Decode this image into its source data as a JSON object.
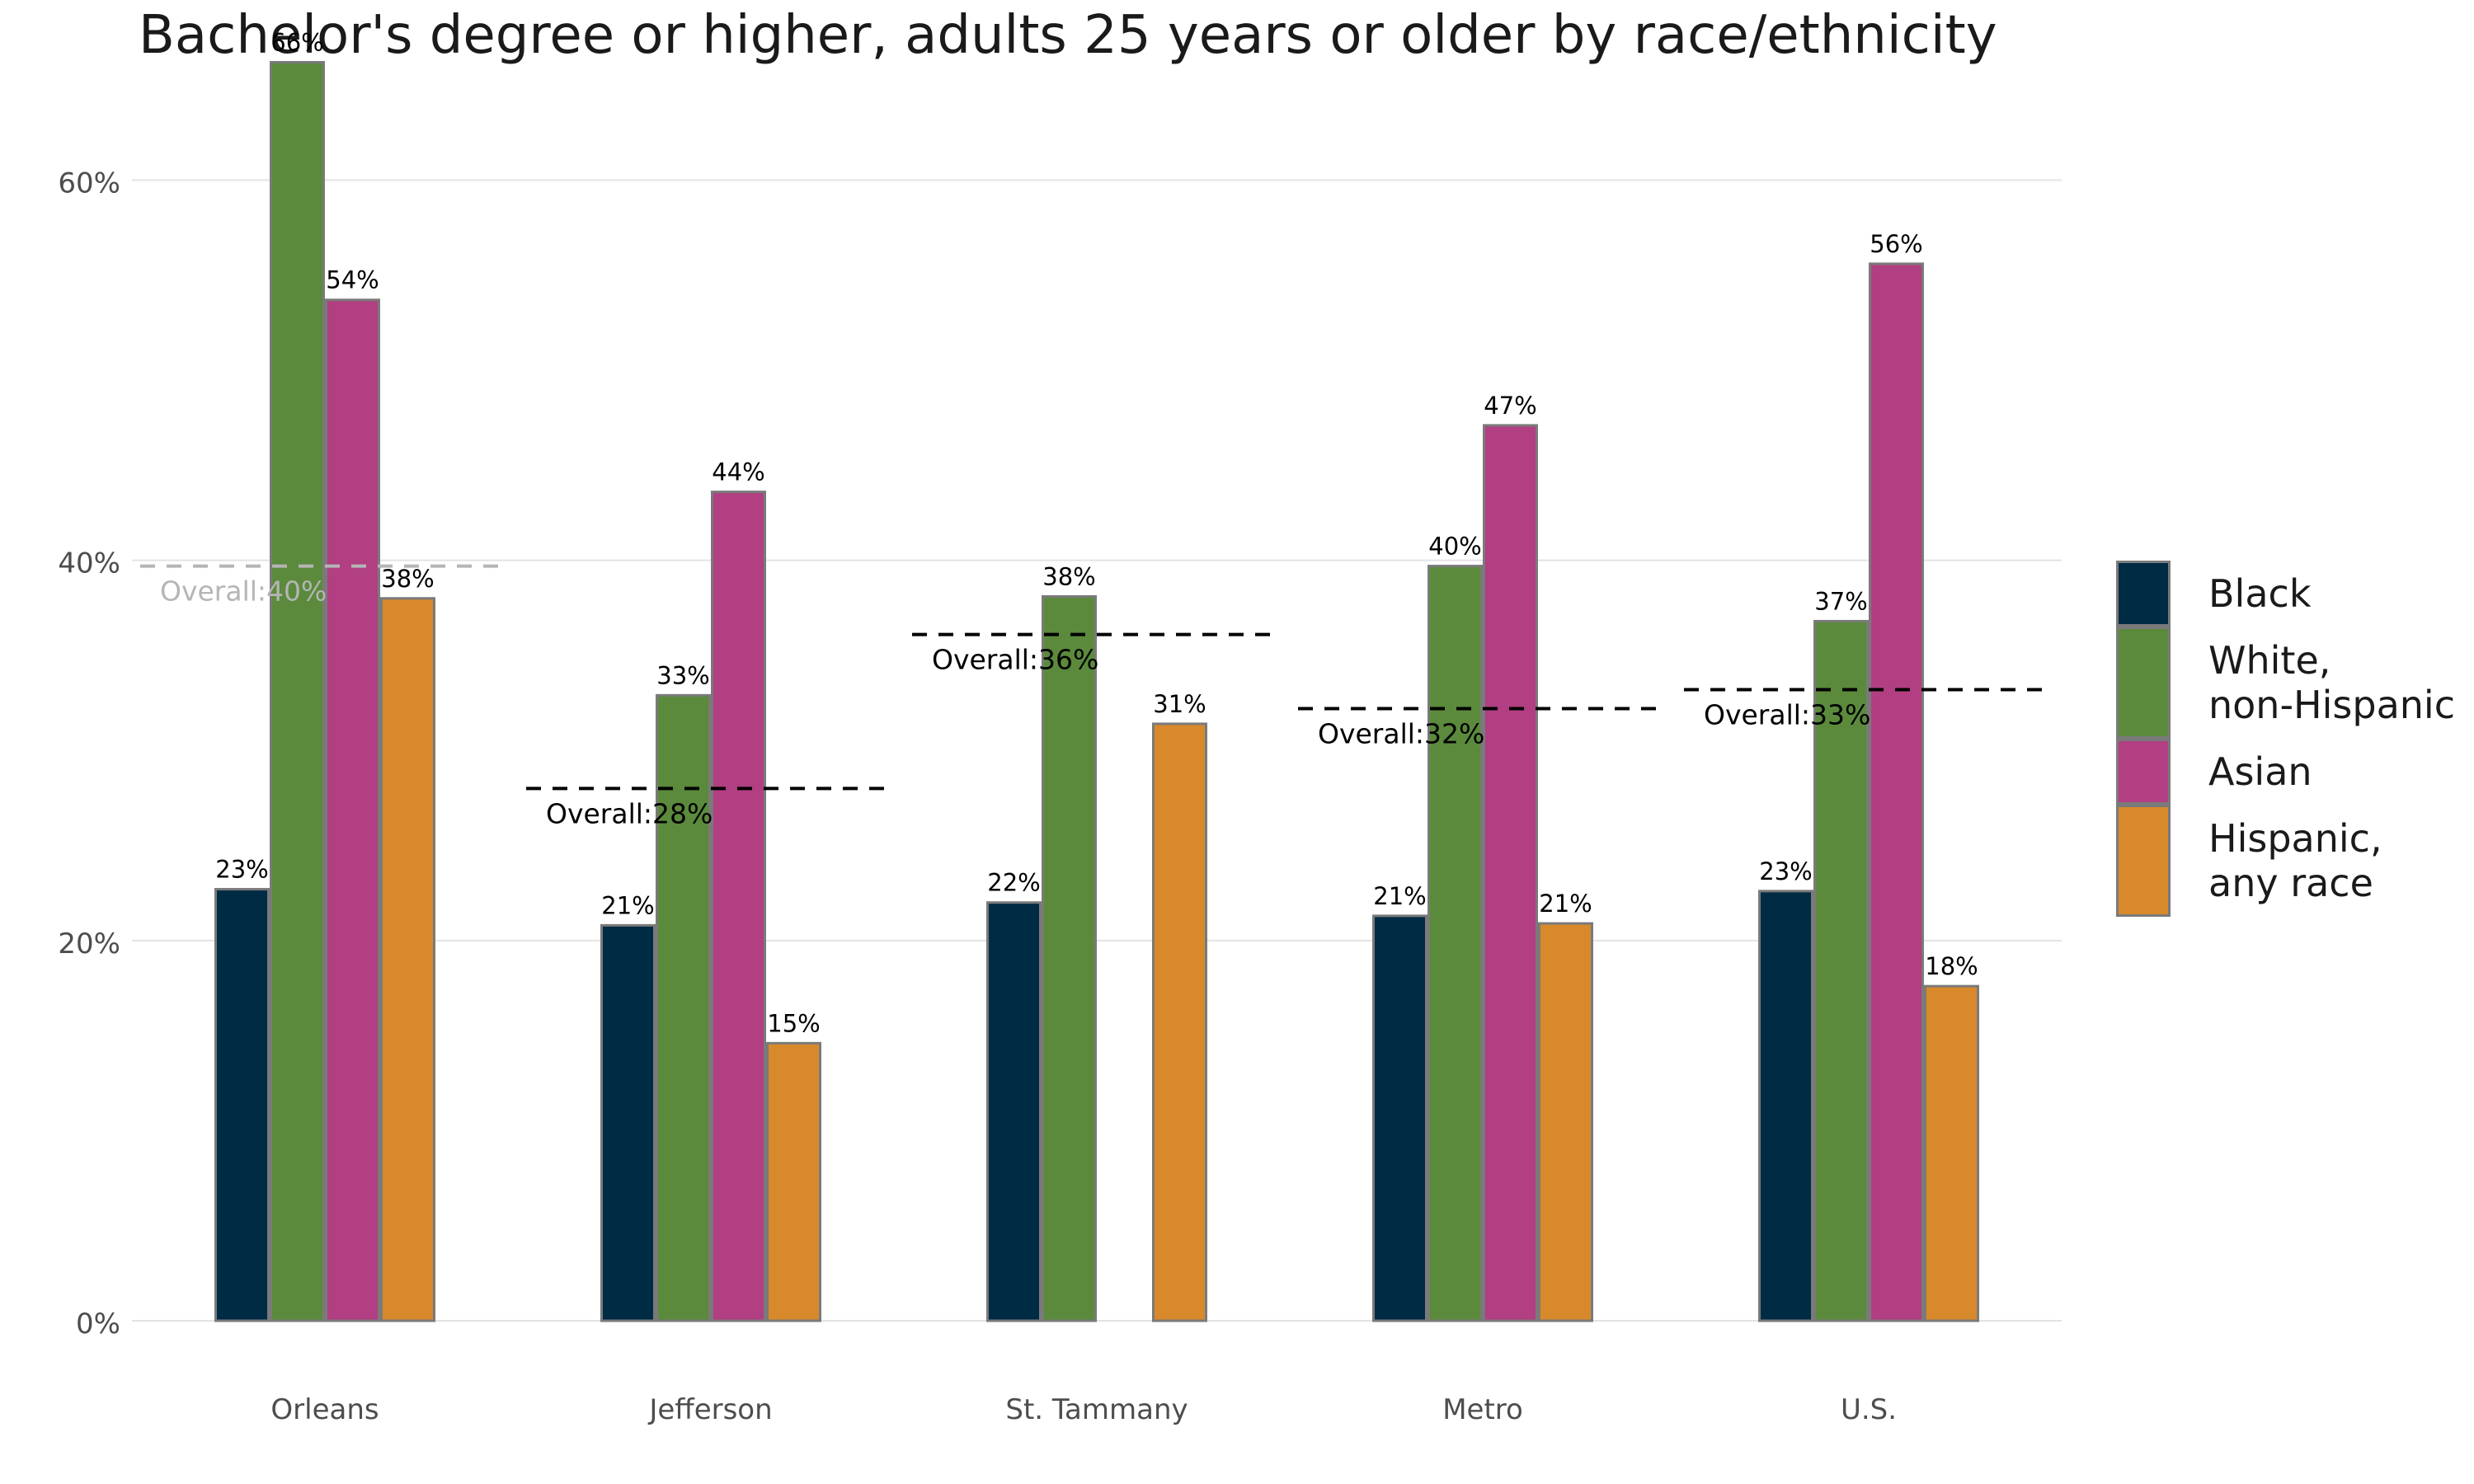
{
  "chart_data": {
    "type": "bar",
    "title": "Bachelor's degree or higher, adults 25 years or older by race/ethnicity",
    "xlabel": "",
    "ylabel": "",
    "categories": [
      "Orleans",
      "Jefferson",
      "St. Tammany",
      "Metro",
      "U.S."
    ],
    "ylim": [
      0,
      0.68
    ],
    "yticks": [
      0,
      0.2,
      0.4,
      0.6
    ],
    "ytick_labels": [
      "0%",
      "20%",
      "40%",
      "60%"
    ],
    "grid": "horizontal",
    "legend_position": "right",
    "series": [
      {
        "name": "Black",
        "color": "#002b45",
        "values": [
          0.227,
          0.208,
          0.22,
          0.213,
          0.226
        ],
        "labels": [
          "23%",
          "21%",
          "22%",
          "21%",
          "23%"
        ]
      },
      {
        "name": "White,\nnon-Hispanic",
        "color": "#5b8a3c",
        "values": [
          0.662,
          0.329,
          0.381,
          0.397,
          0.368
        ],
        "labels": [
          "66%",
          "33%",
          "38%",
          "40%",
          "37%"
        ]
      },
      {
        "name": "Asian",
        "color": "#b13f82",
        "values": [
          0.537,
          0.436,
          null,
          0.471,
          0.556
        ],
        "labels": [
          "54%",
          "44%",
          null,
          "47%",
          "56%"
        ]
      },
      {
        "name": "Hispanic,\nany race",
        "color": "#d8892b",
        "values": [
          0.38,
          0.146,
          0.314,
          0.209,
          0.176
        ],
        "labels": [
          "38%",
          "15%",
          "31%",
          "21%",
          "18%"
        ]
      }
    ],
    "overall": {
      "values": [
        0.397,
        0.28,
        0.361,
        0.322,
        0.332
      ],
      "labels": [
        "Overall:40%",
        "Overall:28%",
        "Overall:36%",
        "Overall:32%",
        "Overall:33%"
      ],
      "colors": [
        "#b5b5b5",
        "#000000",
        "#000000",
        "#000000",
        "#000000"
      ]
    }
  }
}
